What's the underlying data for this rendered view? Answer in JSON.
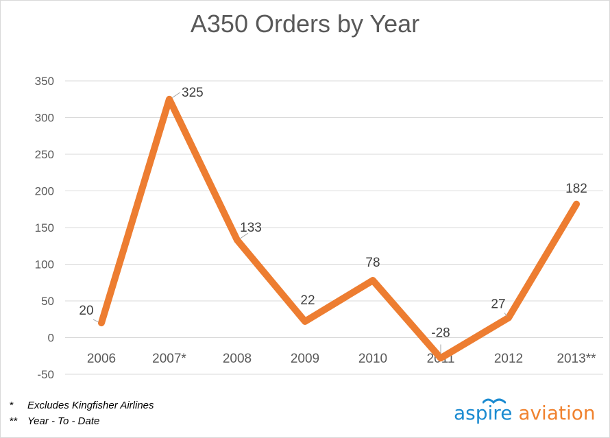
{
  "chart_data": {
    "type": "line",
    "title": "A350 Orders by Year",
    "categories": [
      "2006",
      "2007*",
      "2008",
      "2009",
      "2010",
      "2011",
      "2012",
      "2013**"
    ],
    "series": [
      {
        "values": [
          20,
          325,
          133,
          22,
          78,
          -28,
          27,
          182
        ]
      }
    ],
    "data_labels": [
      "20",
      "325",
      "133",
      "22",
      "78",
      "-28",
      "27",
      "182"
    ],
    "yticks": [
      "350",
      "300",
      "250",
      "200",
      "150",
      "100",
      "50",
      "0",
      "-50"
    ],
    "ylim": [
      -50,
      350
    ],
    "grid": true,
    "legend": "none",
    "colors": {
      "line": "#ed7d31",
      "grid": "#d9d9d9",
      "tick_text": "#595959",
      "label_text": "#404040"
    }
  },
  "footnotes": [
    {
      "mark": "*",
      "text": "Excludes Kingfisher Airlines"
    },
    {
      "mark": "**",
      "text": "Year - To - Date"
    }
  ],
  "logo": {
    "word1": "aspire",
    "word2": "aviation"
  }
}
